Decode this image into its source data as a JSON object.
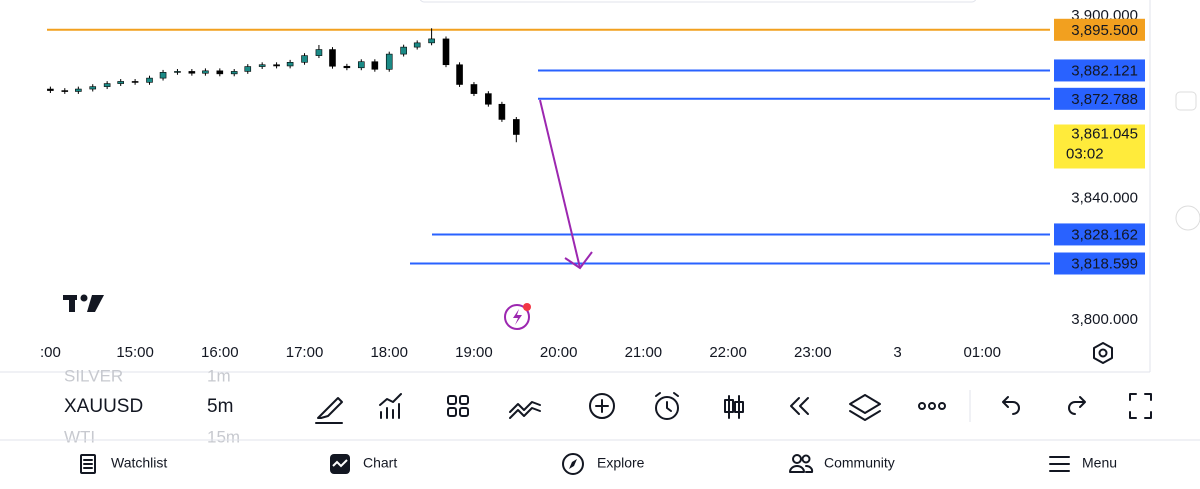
{
  "chart_data": {
    "type": "candlestick",
    "x": [
      14,
      14.17,
      14.33,
      14.5,
      14.67,
      14.83,
      15,
      15.17,
      15.33,
      15.5,
      15.67,
      15.83,
      16,
      16.17,
      16.33,
      16.5,
      16.67,
      16.83,
      17,
      17.17,
      17.33,
      17.5,
      17.67,
      17.83,
      18,
      18.17,
      18.33,
      18.5,
      18.67,
      18.83,
      19,
      19.17,
      19.33,
      19.5
    ],
    "open": [
      3876.0,
      3875.5,
      3875.2,
      3876.0,
      3876.8,
      3877.8,
      3878.5,
      3878.2,
      3879.6,
      3881.5,
      3881.8,
      3881.2,
      3882.0,
      3881.0,
      3881.8,
      3883.4,
      3884.0,
      3883.6,
      3884.8,
      3887.0,
      3889.0,
      3883.5,
      3883.0,
      3885.0,
      3882.5,
      3887.5,
      3889.8,
      3891.2,
      3892.5,
      3884.0,
      3877.5,
      3874.5,
      3871.0,
      3866.0
    ],
    "high": [
      3876.8,
      3876.3,
      3876.8,
      3877.6,
      3878.6,
      3879.3,
      3879.3,
      3880.4,
      3882.3,
      3882.6,
      3882.6,
      3882.8,
      3882.8,
      3882.6,
      3884.2,
      3884.8,
      3884.8,
      3885.6,
      3887.8,
      3890.5,
      3889.8,
      3884.3,
      3885.8,
      3885.8,
      3888.3,
      3890.6,
      3892.0,
      3896.0,
      3893.3,
      3884.8,
      3878.3,
      3875.3,
      3871.8,
      3866.8
    ],
    "low": [
      3874.7,
      3874.4,
      3874.4,
      3875.2,
      3876.0,
      3877.0,
      3877.4,
      3877.4,
      3878.8,
      3880.7,
      3880.4,
      3880.4,
      3880.2,
      3880.2,
      3881.0,
      3882.6,
      3882.8,
      3882.8,
      3884.0,
      3886.2,
      3882.7,
      3882.2,
      3882.2,
      3881.7,
      3881.7,
      3886.7,
      3889.0,
      3890.4,
      3883.2,
      3876.7,
      3873.7,
      3870.2,
      3865.2,
      3858.5
    ],
    "close": [
      3875.5,
      3875.2,
      3876.0,
      3876.8,
      3877.8,
      3878.5,
      3878.2,
      3879.6,
      3881.5,
      3881.8,
      3881.2,
      3882.0,
      3881.0,
      3881.8,
      3883.4,
      3884.0,
      3883.6,
      3884.8,
      3887.0,
      3889.0,
      3883.5,
      3883.0,
      3885.0,
      3882.5,
      3887.5,
      3889.8,
      3891.2,
      3892.5,
      3884.0,
      3877.5,
      3874.5,
      3871.0,
      3866.0,
      3861.045
    ],
    "up_color": "#1b8a86",
    "down_color": "#000000",
    "xlim": [
      13.96,
      25.8
    ],
    "xticks": [
      {
        "value": 14,
        "label": ":00"
      },
      {
        "value": 15,
        "label": "15:00"
      },
      {
        "value": 16,
        "label": "16:00"
      },
      {
        "value": 17,
        "label": "17:00"
      },
      {
        "value": 18,
        "label": "18:00"
      },
      {
        "value": 19,
        "label": "19:00"
      },
      {
        "value": 20,
        "label": "20:00"
      },
      {
        "value": 21,
        "label": "21:00"
      },
      {
        "value": 22,
        "label": "22:00"
      },
      {
        "value": 23,
        "label": "23:00"
      },
      {
        "value": 24,
        "label": "3"
      },
      {
        "value": 25,
        "label": "01:00"
      }
    ],
    "ylim": [
      3782.9,
      3905.3
    ],
    "yticks": [
      {
        "value": 3900,
        "label": "3,900.000"
      },
      {
        "value": 3840,
        "label": "3,840.000"
      },
      {
        "value": 3800,
        "label": "3,800.000"
      }
    ],
    "levels": [
      {
        "value": 3895.5,
        "label": "3,895.500",
        "color": "#f2a01f"
      },
      {
        "value": 3882.121,
        "label": "3,882.121",
        "color": "#2962ff"
      },
      {
        "value": 3872.788,
        "label": "3,872.788",
        "color": "#2962ff"
      },
      {
        "value": 3828.162,
        "label": "3,828.162",
        "color": "#2962ff"
      },
      {
        "value": 3818.599,
        "label": "3,818.599",
        "color": "#2962ff"
      }
    ],
    "last_price": {
      "value": 3861.045,
      "label": "3,861.045",
      "countdown": "03:02",
      "color": "#ffeb3b"
    }
  },
  "toolbar": {
    "symbols": [
      "SILVER",
      "XAUUSD",
      "WTI"
    ],
    "intervals": [
      "1m",
      "5m",
      "15m"
    ]
  },
  "nav": [
    "Watchlist",
    "Chart",
    "Explore",
    "Community",
    "Menu"
  ]
}
